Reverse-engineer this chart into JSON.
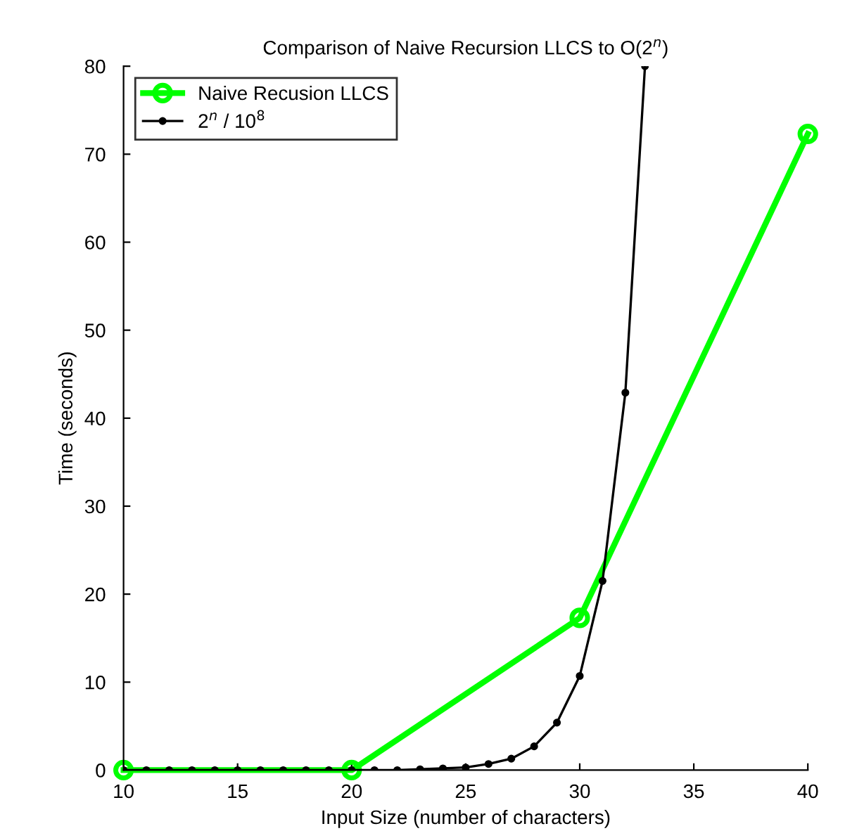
{
  "chart_data": {
    "type": "line",
    "title": "Comparison of Naive Recursion LLCS to O(2$^{n}$)",
    "xlabel": "Input Size (number of characters)",
    "ylabel": "Time (seconds)",
    "xlim": [
      10,
      40
    ],
    "xticks": [
      10,
      15,
      20,
      25,
      30,
      35,
      40
    ],
    "ylim": [
      0,
      80
    ],
    "yticks": [
      0,
      10,
      20,
      30,
      40,
      50,
      60,
      70,
      80
    ],
    "grid": false,
    "legend": "top left",
    "line_style": "solid",
    "series": [
      {
        "name": "Naive Recusion LLCS",
        "color": "#00ff00",
        "marker": "circle",
        "x": [
          10,
          20,
          30,
          40
        ],
        "values": [
          0,
          0,
          17.3,
          72.3
        ]
      },
      {
        "name": "2$^{n}$ / 10$^{8}$",
        "color": "#000000",
        "marker": "dot",
        "x": [
          10,
          11,
          12,
          13,
          14,
          15,
          16,
          17,
          18,
          19,
          20,
          21,
          22,
          23,
          24,
          25,
          26,
          27,
          28,
          29,
          30,
          31,
          32,
          32.86
        ],
        "values": [
          0,
          0,
          0,
          0,
          0,
          0,
          0,
          0,
          0,
          0,
          0,
          0,
          0,
          0.1,
          0.2,
          0.3,
          0.7,
          1.3,
          2.7,
          5.4,
          10.7,
          21.5,
          42.9,
          80
        ]
      }
    ]
  }
}
